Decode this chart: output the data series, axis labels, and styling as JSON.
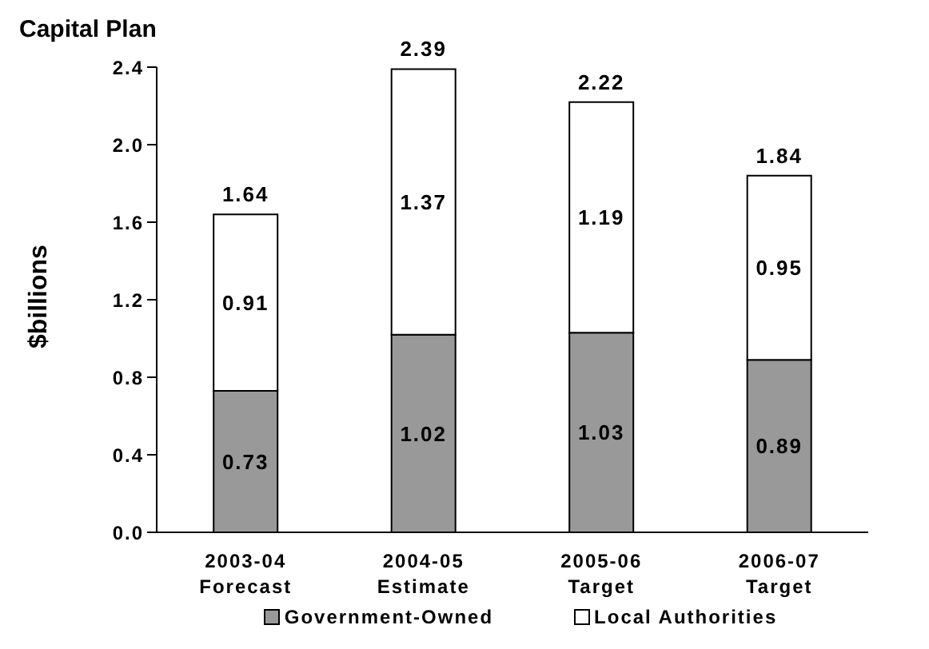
{
  "chart_data": {
    "type": "bar",
    "title": "Capital Plan",
    "ylabel": "$billions",
    "stacked": true,
    "categories": [
      "2003-04\nForecast",
      "2004-05\nEstimate",
      "2005-06\nTarget",
      "2006-07\nTarget"
    ],
    "series": [
      {
        "name": "Government-Owned",
        "color": "#999999",
        "values": [
          0.73,
          1.02,
          1.03,
          0.89
        ]
      },
      {
        "name": "Local Authorities",
        "color": "#ffffff",
        "values": [
          0.91,
          1.37,
          1.19,
          0.95
        ]
      }
    ],
    "totals": [
      "1.64",
      "2.39",
      "2.22",
      "1.84"
    ],
    "data_labels": true,
    "ylim": [
      0,
      2.4
    ],
    "yticks": [
      {
        "value": 0,
        "label": "0.0"
      },
      {
        "value": 0.4,
        "label": "0.4"
      },
      {
        "value": 0.8,
        "label": "0.8"
      },
      {
        "value": 1.2,
        "label": "1.2"
      },
      {
        "value": 1.6,
        "label": "1.6"
      },
      {
        "value": 2.0,
        "label": "2.0"
      },
      {
        "value": 2.4,
        "label": "2.4"
      }
    ],
    "grid": false,
    "legend": "bottom"
  }
}
